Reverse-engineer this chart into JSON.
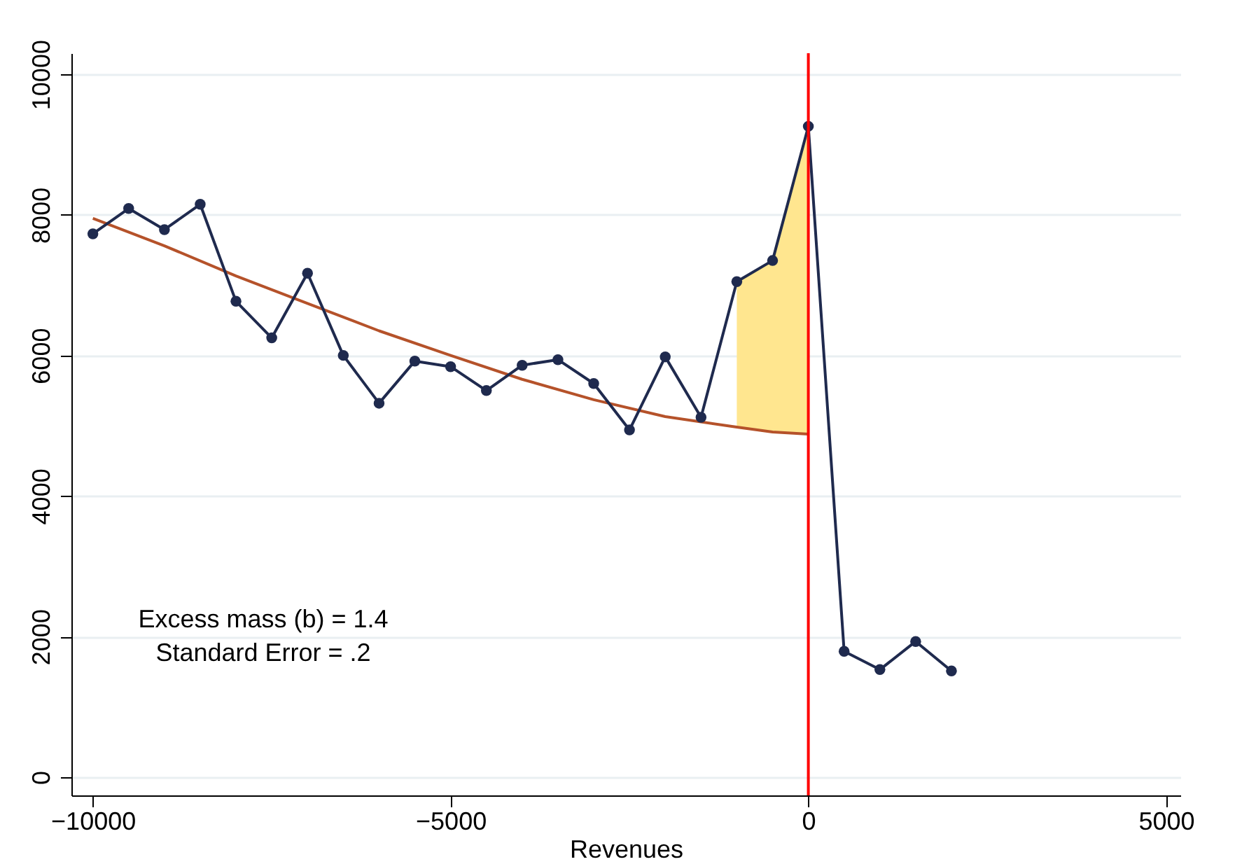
{
  "chart_data": {
    "type": "line",
    "xlabel": "Revenues",
    "annotations": [
      "Excess mass (b) = 1.4",
      "Standard Error = .2"
    ],
    "series": [
      {
        "type": "line",
        "color": "#b5522a",
        "marker": "none",
        "x": [
          -10000,
          -9000,
          -8000,
          -7000,
          -6000,
          -5000,
          -4000,
          -3000,
          -2000,
          -1000,
          -500,
          0
        ],
        "values": [
          7950,
          7560,
          7130,
          6740,
          6350,
          6000,
          5660,
          5370,
          5130,
          4980,
          4910,
          4880
        ],
        "lower": [
          null,
          null,
          null,
          null,
          null,
          null,
          null,
          null,
          null,
          4980,
          4910,
          4880
        ],
        "upper": [
          null,
          null,
          null,
          null,
          null,
          null,
          null,
          null,
          null,
          7050,
          7350,
          9260
        ]
      },
      {
        "type": "line",
        "color": "#1f2a4e",
        "marker": "circle",
        "x": [
          -10000,
          -9500,
          -9000,
          -8500,
          -8000,
          -7500,
          -7000,
          -6500,
          -6000,
          -5500,
          -5000,
          -4500,
          -4000,
          -3500,
          -3000,
          -2500,
          -2000,
          -1500,
          -1000,
          -500,
          0,
          500,
          1000,
          1500,
          2000
        ],
        "values": [
          7730,
          8090,
          7790,
          8150,
          6770,
          6250,
          7170,
          6000,
          5320,
          5920,
          5840,
          5500,
          5860,
          5940,
          5600,
          4940,
          5980,
          5120,
          7050,
          7350,
          9260,
          1790,
          1530,
          1930,
          1510
        ]
      }
    ],
    "ref_lines": [
      {
        "axis": "x",
        "value": 0,
        "color": "#ff0000"
      }
    ],
    "xlim": [
      -10300,
      5200
    ],
    "xticks": [
      -10000,
      -5000,
      0,
      5000
    ],
    "ylim": [
      -260,
      10300
    ],
    "yticks": [
      0,
      2000,
      4000,
      6000,
      8000,
      10000
    ],
    "grid": "y"
  }
}
